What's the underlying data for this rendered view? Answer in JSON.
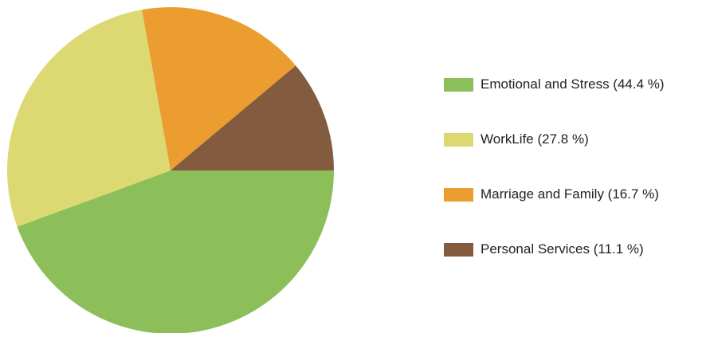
{
  "chart_data": {
    "type": "pie",
    "title": "",
    "legend_position": "right",
    "slices": [
      {
        "label": "Emotional and Stress (44.4 %)",
        "value": 44.4,
        "color": "#8cbf5a"
      },
      {
        "label": "WorkLife (27.8 %)",
        "value": 27.8,
        "color": "#dcd872"
      },
      {
        "label": "Marriage and Family (16.7 %)",
        "value": 16.7,
        "color": "#ec9d30"
      },
      {
        "label": "Personal Services (11.1 %)",
        "value": 11.1,
        "color": "#835b3e"
      }
    ]
  }
}
